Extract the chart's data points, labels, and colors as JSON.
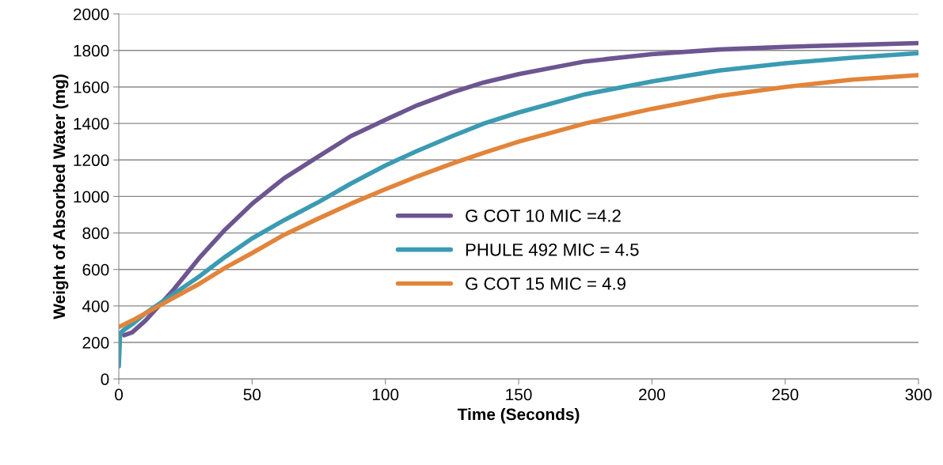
{
  "chart_data": {
    "type": "line",
    "xlabel": "Time (Seconds)",
    "ylabel": "Weight of Absorbed Water (mg)",
    "xlim": [
      0,
      300
    ],
    "xticks": [
      0,
      50,
      100,
      150,
      200,
      250,
      300
    ],
    "ylim": [
      0,
      2000
    ],
    "yticks": [
      0,
      200,
      400,
      600,
      800,
      1000,
      1200,
      1400,
      1600,
      1800,
      2000
    ],
    "grid": "y",
    "legend": "center",
    "marker": "none",
    "line_style": "solid",
    "series": [
      {
        "name": "G COT 10 MIC =4.2",
        "color": "#6d5591",
        "x": [
          2,
          5,
          10,
          15,
          20,
          30,
          40,
          50,
          62,
          75,
          87,
          100,
          112,
          125,
          137,
          150,
          175,
          200,
          225,
          250,
          275,
          300
        ],
        "values": [
          240,
          255,
          320,
          400,
          480,
          660,
          820,
          960,
          1100,
          1220,
          1330,
          1420,
          1500,
          1570,
          1625,
          1670,
          1740,
          1780,
          1805,
          1820,
          1830,
          1840
        ]
      },
      {
        "name": "PHULE 492 MIC = 4.5",
        "color": "#3a9bb2",
        "x": [
          0,
          0.5,
          2,
          5,
          10,
          15,
          20,
          30,
          40,
          50,
          62,
          75,
          87,
          100,
          112,
          125,
          137,
          150,
          175,
          200,
          225,
          250,
          275,
          300
        ],
        "values": [
          70,
          250,
          270,
          300,
          360,
          410,
          460,
          560,
          670,
          770,
          870,
          970,
          1070,
          1170,
          1250,
          1330,
          1400,
          1460,
          1560,
          1630,
          1690,
          1730,
          1760,
          1785
        ]
      },
      {
        "name": "G COT 15 MIC = 4.9",
        "color": "#e2843a",
        "x": [
          0,
          5,
          10,
          15,
          20,
          30,
          40,
          50,
          62,
          75,
          87,
          100,
          112,
          125,
          137,
          150,
          175,
          200,
          225,
          250,
          275,
          300
        ],
        "values": [
          285,
          320,
          360,
          400,
          440,
          520,
          610,
          690,
          790,
          880,
          960,
          1040,
          1110,
          1180,
          1240,
          1300,
          1400,
          1480,
          1550,
          1600,
          1640,
          1665
        ]
      }
    ]
  }
}
